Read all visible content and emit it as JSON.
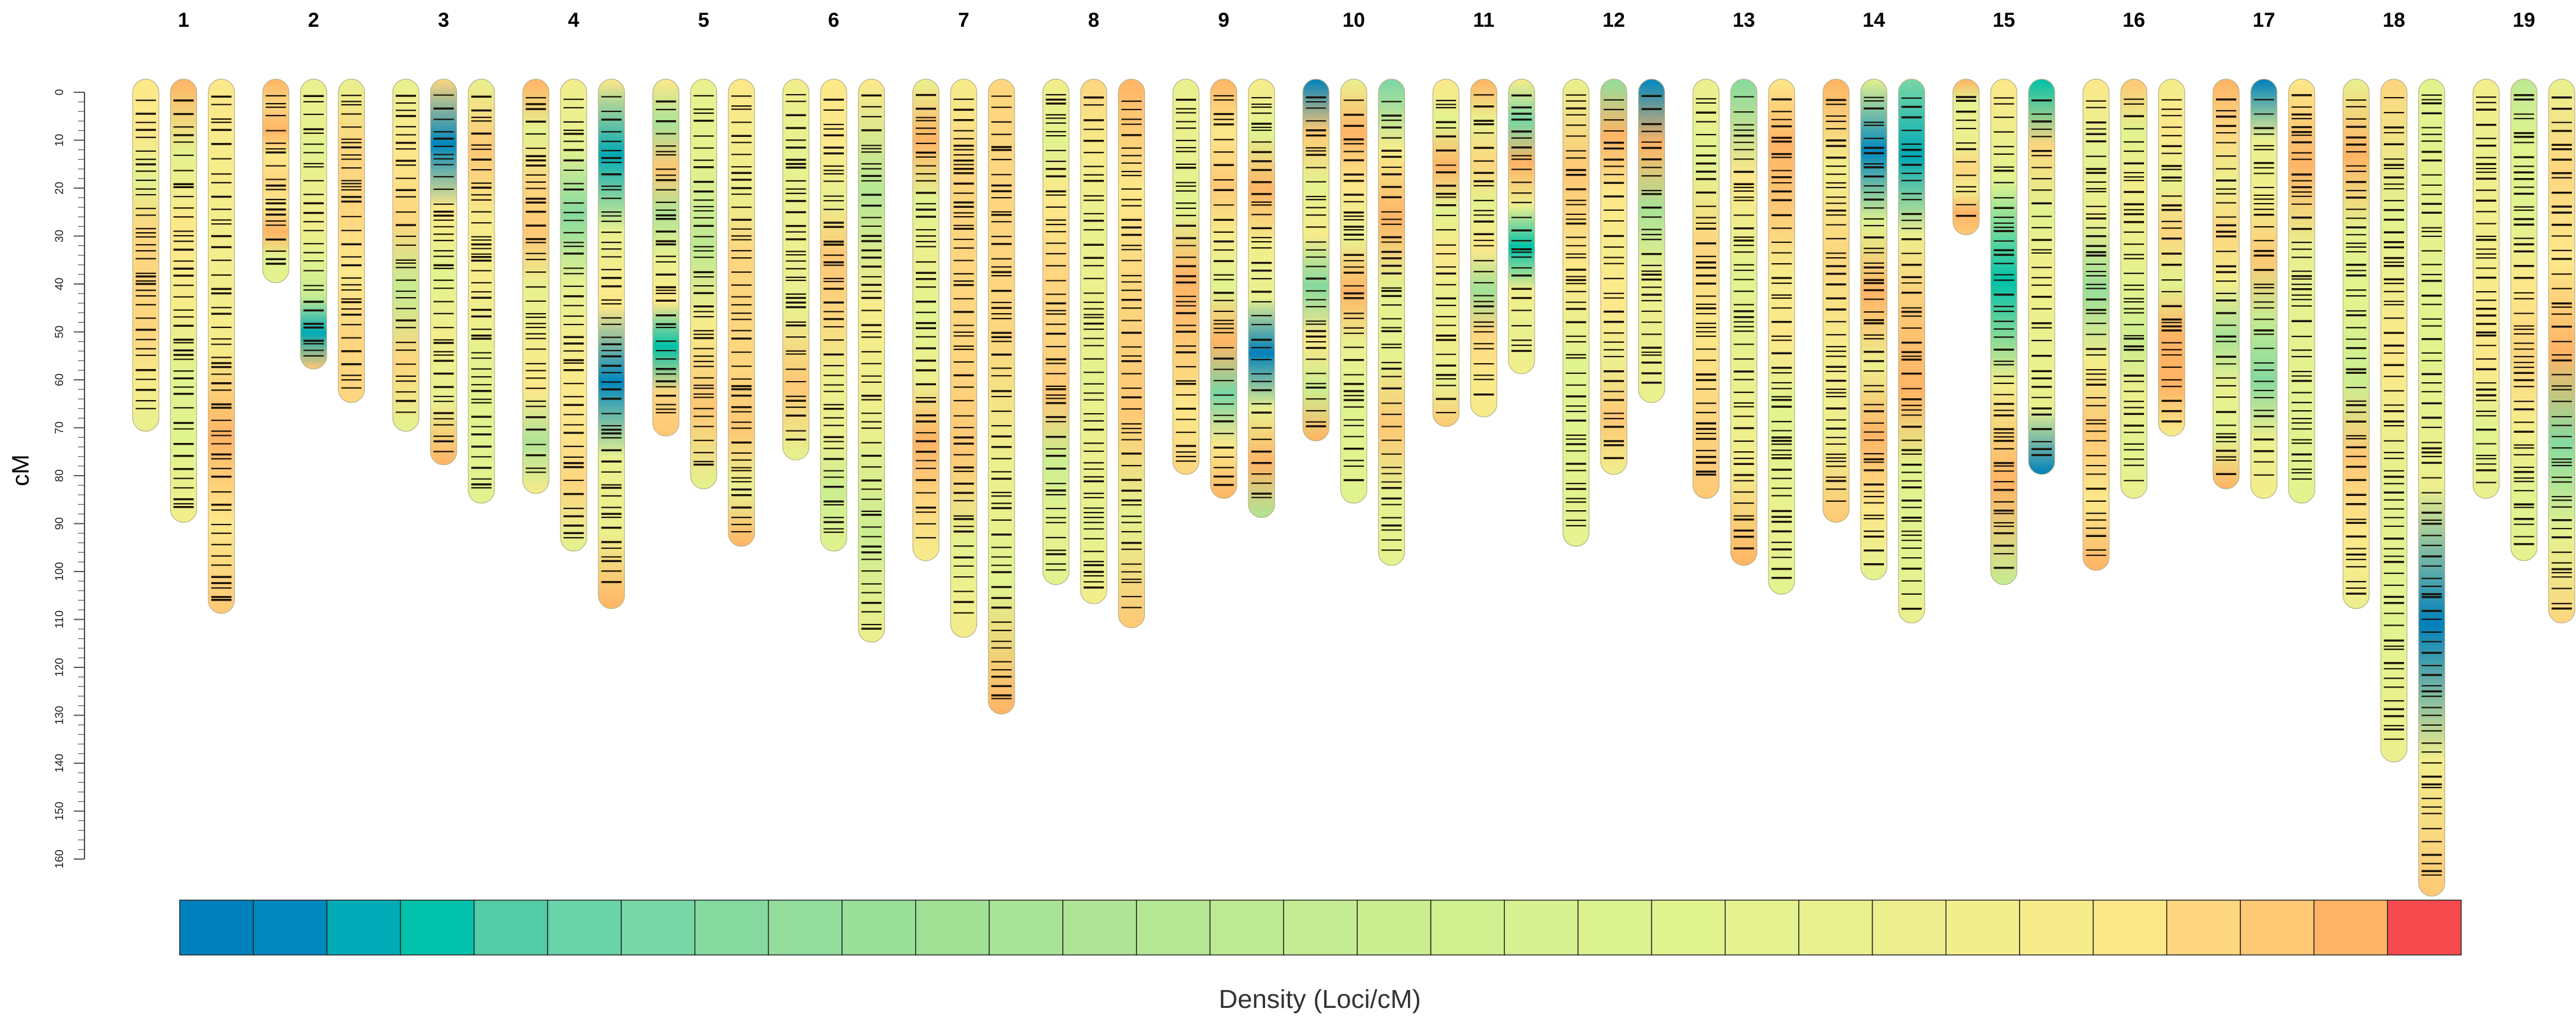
{
  "chart_data": {
    "type": "linkage-map",
    "title": "",
    "ylabel": "cM",
    "legend_title": "Density (Loci/cM)",
    "y_axis": {
      "min": 0,
      "max": 160,
      "major_step": 10,
      "minor_step": 2,
      "tick_labels": [
        "0",
        "10",
        "20",
        "30",
        "40",
        "50",
        "60",
        "70",
        "80",
        "90",
        "100",
        "110",
        "120",
        "130",
        "140",
        "150",
        "160"
      ]
    },
    "legend_colors": [
      "#0080bc",
      "#0088bf",
      "#00aab6",
      "#00c1a9",
      "#52cca6",
      "#69d3a9",
      "#78d7a6",
      "#86da9f",
      "#92dd9c",
      "#99df99",
      "#a1e196",
      "#a8e397",
      "#afe496",
      "#b5e794",
      "#bde993",
      "#c5ec92",
      "#cbee90",
      "#d1f08f",
      "#d6f190",
      "#dcf290",
      "#e1f38f",
      "#e4f28f",
      "#e9f18f",
      "#edef8e",
      "#f2ee8c",
      "#f6ec8b",
      "#fde88a",
      "#fdd67f",
      "#fec875",
      "#ffb465",
      "#f74a4f"
    ],
    "linkage_groups": [
      {
        "label": "1",
        "lengths": [
          68,
          87,
          106
        ]
      },
      {
        "label": "2",
        "lengths": [
          37,
          55,
          62
        ]
      },
      {
        "label": "3",
        "lengths": [
          68,
          75,
          83
        ]
      },
      {
        "label": "4",
        "lengths": [
          81,
          93,
          105
        ]
      },
      {
        "label": "5",
        "lengths": [
          69,
          80,
          92
        ]
      },
      {
        "label": "6",
        "lengths": [
          74,
          93,
          112
        ]
      },
      {
        "label": "7",
        "lengths": [
          95,
          111,
          127
        ]
      },
      {
        "label": "8",
        "lengths": [
          100,
          104,
          109
        ]
      },
      {
        "label": "9",
        "lengths": [
          77,
          82,
          86
        ]
      },
      {
        "label": "10",
        "lengths": [
          70,
          83,
          96
        ]
      },
      {
        "label": "11",
        "lengths": [
          67,
          65,
          56
        ]
      },
      {
        "label": "12",
        "lengths": [
          92,
          77,
          62
        ]
      },
      {
        "label": "13",
        "lengths": [
          82,
          96,
          102
        ]
      },
      {
        "label": "14",
        "lengths": [
          87,
          99,
          108
        ]
      },
      {
        "label": "15",
        "lengths": [
          27,
          100,
          77
        ]
      },
      {
        "label": "16",
        "lengths": [
          97,
          82,
          69
        ]
      },
      {
        "label": "17",
        "lengths": [
          80,
          82,
          83
        ]
      },
      {
        "label": "18",
        "lengths": [
          105,
          137,
          165
        ]
      },
      {
        "label": "19",
        "lengths": [
          82,
          95,
          108
        ]
      }
    ]
  }
}
